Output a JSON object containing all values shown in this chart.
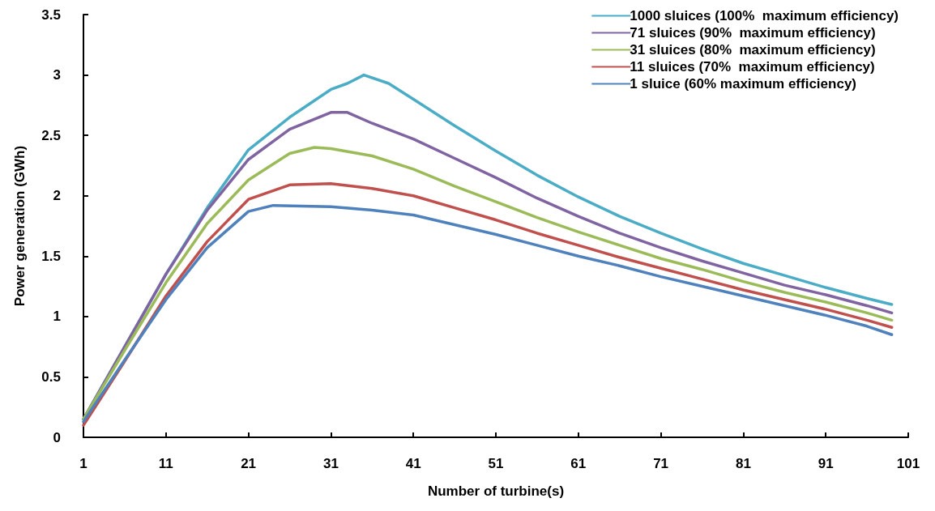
{
  "chart_data": {
    "type": "line",
    "xlabel": "Number of turbine(s)",
    "ylabel": "Power generation (GWh)",
    "xlim": [
      1,
      101
    ],
    "xticks": [
      1,
      11,
      21,
      31,
      41,
      51,
      61,
      71,
      81,
      91,
      101
    ],
    "ylim": [
      0,
      3.5
    ],
    "yticks": [
      0,
      0.5,
      1,
      1.5,
      2,
      2.5,
      3,
      3.5
    ],
    "grid": false,
    "legend": "top right",
    "marker": "none",
    "line_style": "solid",
    "series": [
      {
        "name": "1000 sluices (100%  maximum efficiency)",
        "color": "#4bacc6",
        "x": [
          1,
          6,
          11,
          16,
          21,
          26,
          31,
          33,
          35,
          38,
          41,
          46,
          51,
          56,
          61,
          66,
          71,
          76,
          81,
          86,
          91,
          96,
          99
        ],
        "values": [
          0.15,
          0.75,
          1.35,
          1.9,
          2.38,
          2.65,
          2.88,
          2.93,
          3.0,
          2.93,
          2.8,
          2.58,
          2.37,
          2.17,
          1.99,
          1.83,
          1.69,
          1.56,
          1.44,
          1.34,
          1.24,
          1.15,
          1.1
        ]
      },
      {
        "name": "71 sluices (90%  maximum efficiency)",
        "color": "#8064a2",
        "x": [
          1,
          6,
          11,
          16,
          21,
          26,
          31,
          33,
          36,
          41,
          46,
          51,
          56,
          61,
          66,
          71,
          76,
          81,
          86,
          91,
          96,
          99
        ],
        "values": [
          0.15,
          0.75,
          1.35,
          1.88,
          2.3,
          2.55,
          2.69,
          2.69,
          2.6,
          2.47,
          2.31,
          2.15,
          1.98,
          1.83,
          1.69,
          1.57,
          1.46,
          1.36,
          1.26,
          1.18,
          1.09,
          1.03
        ]
      },
      {
        "name": "31 sluices (80%  maximum efficiency)",
        "color": "#9bbb59",
        "x": [
          1,
          6,
          11,
          16,
          21,
          26,
          29,
          31,
          36,
          41,
          46,
          51,
          56,
          61,
          66,
          71,
          76,
          81,
          86,
          91,
          96,
          99
        ],
        "values": [
          0.15,
          0.72,
          1.28,
          1.77,
          2.13,
          2.35,
          2.4,
          2.39,
          2.33,
          2.22,
          2.08,
          1.95,
          1.82,
          1.7,
          1.59,
          1.48,
          1.39,
          1.29,
          1.2,
          1.12,
          1.03,
          0.97
        ]
      },
      {
        "name": "11 sluices (70%  maximum efficiency)",
        "color": "#c0504d",
        "x": [
          1,
          6,
          11,
          16,
          21,
          26,
          31,
          36,
          41,
          46,
          51,
          56,
          61,
          66,
          71,
          76,
          81,
          86,
          91,
          96,
          99
        ],
        "values": [
          0.1,
          0.63,
          1.17,
          1.62,
          1.97,
          2.09,
          2.1,
          2.06,
          2.0,
          1.9,
          1.8,
          1.69,
          1.59,
          1.49,
          1.4,
          1.31,
          1.22,
          1.14,
          1.06,
          0.97,
          0.91
        ]
      },
      {
        "name": "1 sluice (60% maximum efficiency)",
        "color": "#4f81bd",
        "x": [
          1,
          6,
          11,
          16,
          21,
          24,
          31,
          36,
          41,
          46,
          51,
          56,
          61,
          66,
          71,
          76,
          81,
          86,
          91,
          96,
          99
        ],
        "values": [
          0.13,
          0.64,
          1.14,
          1.57,
          1.87,
          1.92,
          1.91,
          1.88,
          1.84,
          1.76,
          1.68,
          1.59,
          1.5,
          1.42,
          1.33,
          1.25,
          1.17,
          1.09,
          1.01,
          0.92,
          0.85
        ]
      }
    ]
  }
}
